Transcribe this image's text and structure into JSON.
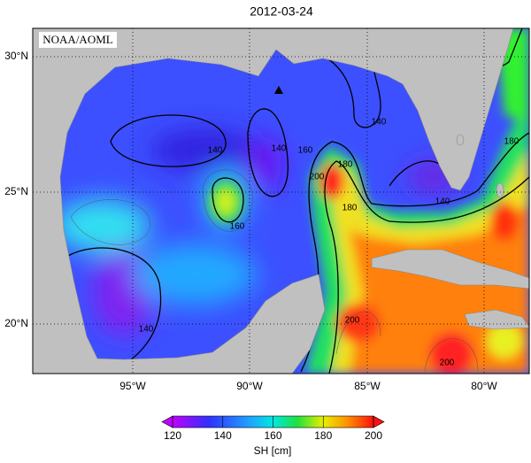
{
  "map": {
    "title": "2012-03-24",
    "credit": "NOAA/AOML",
    "lat_labels": [
      "30°N",
      "25°N",
      "20°N"
    ],
    "lon_labels": [
      "95°W",
      "90°W",
      "85°W",
      "80°W"
    ],
    "contour_labels": [
      140,
      140,
      140,
      140,
      160,
      160,
      180,
      180,
      200,
      200,
      200,
      140,
      180
    ],
    "colorbar": {
      "ticks": [
        120,
        140,
        160,
        180,
        200
      ],
      "label": "SH [cm]"
    }
  }
}
